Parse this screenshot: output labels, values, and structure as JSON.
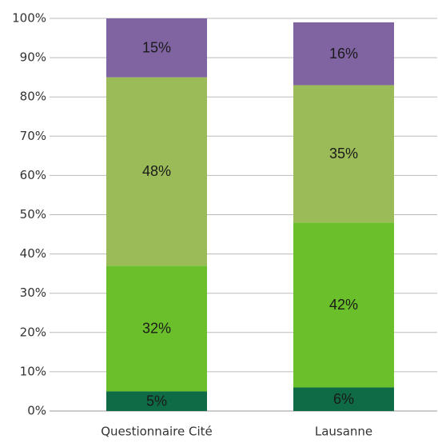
{
  "chart_data": {
    "type": "stacked_bar",
    "categories": [
      "Questionnaire Cité",
      "Lausanne"
    ],
    "series": [
      {
        "color": "#0e6b45",
        "values": [
          5,
          6
        ],
        "value_labels": [
          "5%",
          "6%"
        ]
      },
      {
        "color": "#6abf2a",
        "values": [
          32,
          42
        ],
        "value_labels": [
          "32%",
          "42%"
        ]
      },
      {
        "color": "#9bbb59",
        "values": [
          48,
          35
        ],
        "value_labels": [
          "48%",
          "35%"
        ]
      },
      {
        "color": "#8064a2",
        "values": [
          15,
          16
        ],
        "value_labels": [
          "15%",
          "16%"
        ]
      }
    ],
    "ylim": [
      0,
      100
    ],
    "yticks": [
      {
        "value": 0,
        "label": "0%"
      },
      {
        "value": 10,
        "label": "10%"
      },
      {
        "value": 20,
        "label": "20%"
      },
      {
        "value": 30,
        "label": "30%"
      },
      {
        "value": 40,
        "label": "40%"
      },
      {
        "value": 50,
        "label": "50%"
      },
      {
        "value": 60,
        "label": "60%"
      },
      {
        "value": 70,
        "label": "70%"
      },
      {
        "value": 80,
        "label": "80%"
      },
      {
        "value": 90,
        "label": "90%"
      },
      {
        "value": 100,
        "label": "100%"
      }
    ],
    "grid": true
  }
}
